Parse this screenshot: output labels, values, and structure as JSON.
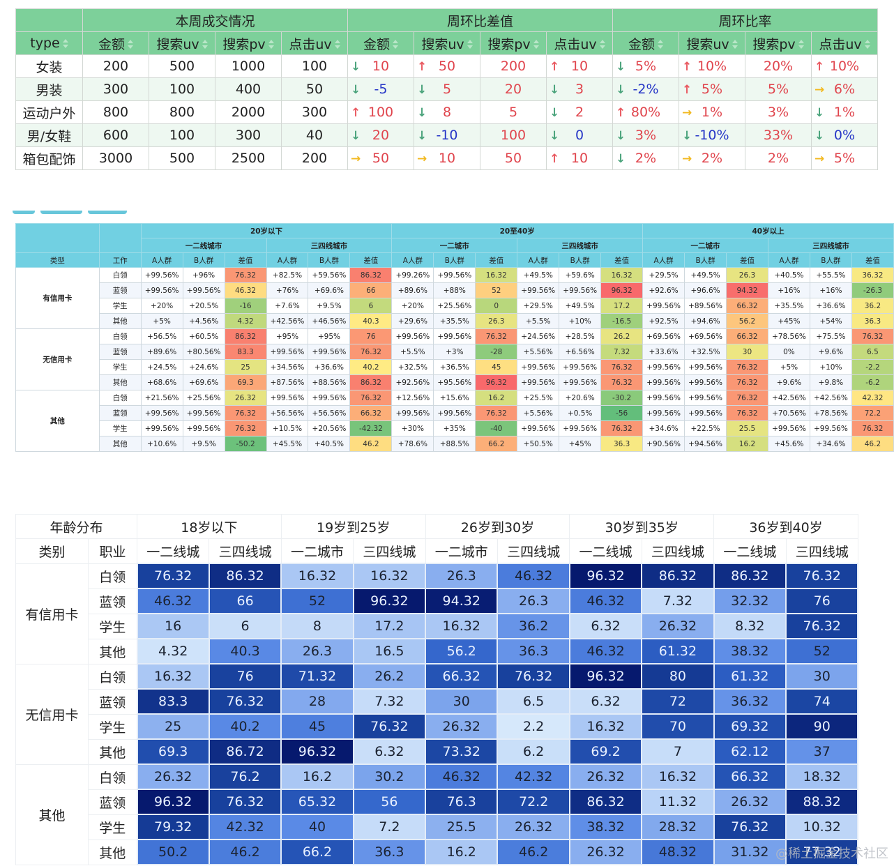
{
  "table1": {
    "group_headers": [
      "",
      "本周成交情况",
      "周环比差值",
      "周环比率"
    ],
    "columns": [
      "type",
      "金额",
      "搜索uv",
      "搜索pv",
      "点击uv",
      "金额",
      "搜索uv",
      "搜索pv",
      "点击uv",
      "金额",
      "搜索uv",
      "搜索pv",
      "点击uv"
    ],
    "sort_icon": "sort-icon",
    "arrow_colors": {
      "down": "#4aa37b",
      "up": "#e95a61",
      "right": "#f2b920"
    },
    "rows": [
      {
        "type": "女装",
        "current": [
          "200",
          "500",
          "1000",
          "100"
        ],
        "diff": [
          {
            "arrow": "down",
            "value": "10",
            "color": "red"
          },
          {
            "arrow": "up",
            "value": "50",
            "color": "red"
          },
          {
            "arrow": "",
            "value": "200",
            "color": "red"
          },
          {
            "arrow": "up",
            "value": "10",
            "color": "red"
          }
        ],
        "rate": [
          {
            "arrow": "down",
            "value": "5%",
            "color": "red"
          },
          {
            "arrow": "up",
            "value": "10%",
            "color": "red"
          },
          {
            "arrow": "",
            "value": "20%",
            "color": "red"
          },
          {
            "arrow": "up",
            "value": "10%",
            "color": "red"
          }
        ]
      },
      {
        "type": "男装",
        "current": [
          "300",
          "100",
          "400",
          "50"
        ],
        "diff": [
          {
            "arrow": "down",
            "value": "-5",
            "color": "blue"
          },
          {
            "arrow": "down",
            "value": "5",
            "color": "red"
          },
          {
            "arrow": "",
            "value": "20",
            "color": "red"
          },
          {
            "arrow": "down",
            "value": "3",
            "color": "red"
          }
        ],
        "rate": [
          {
            "arrow": "down",
            "value": "-2%",
            "color": "blue"
          },
          {
            "arrow": "up",
            "value": "5%",
            "color": "red"
          },
          {
            "arrow": "",
            "value": "5%",
            "color": "red"
          },
          {
            "arrow": "right",
            "value": "6%",
            "color": "red"
          }
        ]
      },
      {
        "type": "运动户外",
        "current": [
          "800",
          "800",
          "2000",
          "300"
        ],
        "diff": [
          {
            "arrow": "up",
            "value": "100",
            "color": "red"
          },
          {
            "arrow": "down",
            "value": "8",
            "color": "red"
          },
          {
            "arrow": "",
            "value": "5",
            "color": "red"
          },
          {
            "arrow": "down",
            "value": "2",
            "color": "red"
          }
        ],
        "rate": [
          {
            "arrow": "up",
            "value": "80%",
            "color": "red"
          },
          {
            "arrow": "right",
            "value": "1%",
            "color": "red"
          },
          {
            "arrow": "",
            "value": "3%",
            "color": "red"
          },
          {
            "arrow": "down",
            "value": "1%",
            "color": "red"
          }
        ]
      },
      {
        "type": "男/女鞋",
        "current": [
          "600",
          "100",
          "300",
          "40"
        ],
        "diff": [
          {
            "arrow": "down",
            "value": "20",
            "color": "red"
          },
          {
            "arrow": "down",
            "value": "-10",
            "color": "blue"
          },
          {
            "arrow": "",
            "value": "100",
            "color": "red"
          },
          {
            "arrow": "down",
            "value": "0",
            "color": "blue"
          }
        ],
        "rate": [
          {
            "arrow": "down",
            "value": "3%",
            "color": "red"
          },
          {
            "arrow": "down",
            "value": "-10%",
            "color": "blue"
          },
          {
            "arrow": "",
            "value": "33%",
            "color": "red"
          },
          {
            "arrow": "down",
            "value": "0%",
            "color": "blue"
          }
        ]
      },
      {
        "type": "箱包配饰",
        "current": [
          "3000",
          "500",
          "2500",
          "200"
        ],
        "diff": [
          {
            "arrow": "right",
            "value": "50",
            "color": "red"
          },
          {
            "arrow": "right",
            "value": "10",
            "color": "red"
          },
          {
            "arrow": "",
            "value": "50",
            "color": "red"
          },
          {
            "arrow": "up",
            "value": "10",
            "color": "red"
          }
        ],
        "rate": [
          {
            "arrow": "down",
            "value": "2%",
            "color": "red"
          },
          {
            "arrow": "right",
            "value": "2%",
            "color": "red"
          },
          {
            "arrow": "",
            "value": "2%",
            "color": "red"
          },
          {
            "arrow": "right",
            "value": "5%",
            "color": "red"
          }
        ]
      }
    ]
  },
  "tabs": {
    "count": 3,
    "color": "#67c6da"
  },
  "table2": {
    "header_color": "#71d0e2",
    "age_groups": [
      "20岁以下",
      "20至40岁",
      "40岁以上"
    ],
    "city_groups": [
      [
        "一二线城市",
        "三四线城市"
      ],
      [
        "一二城市",
        "三四线城市"
      ],
      [
        "一二城市",
        "三四线城市"
      ]
    ],
    "row_header_labels": [
      "类型",
      "工作"
    ],
    "sub_columns": [
      "A人群",
      "B人群",
      "差值"
    ],
    "color_scale": {
      "min": -56,
      "max": 96.32,
      "low": "#63be7b",
      "mid": "#ffeb84",
      "high": "#f8696b"
    },
    "groups": [
      {
        "label": "有信用卡",
        "rows": [
          {
            "job": "白领",
            "cells": [
              "+99.56%",
              "+96%",
              "76.32",
              "+82.5%",
              "+59.56%",
              "86.32",
              "+99.26%",
              "+99.56%",
              "16.32",
              "+49.5%",
              "+59.6%",
              "16.32",
              "+29.5%",
              "+49.5%",
              "26.3",
              "+40.5%",
              "+55.5%",
              "36.32"
            ]
          },
          {
            "job": "蓝领",
            "cells": [
              "+99.56%",
              "+99.56%",
              "46.32",
              "+76%",
              "+69.6%",
              "66",
              "+89.6%",
              "+88%",
              "52",
              "+99.56%",
              "+99.56%",
              "96.32",
              "+92.6%",
              "+96.6%",
              "94.32",
              "+16%",
              "+16%",
              "-26.3"
            ]
          },
          {
            "job": "学生",
            "cells": [
              "+20%",
              "+20.5%",
              "-16",
              "+7.6%",
              "+9.5%",
              "6",
              "+20%",
              "+25.56%",
              "0",
              "+29.5%",
              "+49.5%",
              "17.2",
              "+99.56%",
              "+89.56%",
              "66.32",
              "+35.5%",
              "+36.6%",
              "36.2"
            ]
          },
          {
            "job": "其他",
            "cells": [
              "+5%",
              "+4.56%",
              "4.32",
              "+42.56%",
              "+46.56%",
              "40.3",
              "+29.6%",
              "+35.5%",
              "26.3",
              "+5.5%",
              "+10%",
              "-16.5",
              "+92.5%",
              "+94.6%",
              "56.2",
              "+45%",
              "+54%",
              "36.3"
            ]
          }
        ]
      },
      {
        "label": "无信用卡",
        "rows": [
          {
            "job": "白领",
            "cells": [
              "+56.5%",
              "+60.5%",
              "86.32",
              "+95%",
              "+95%",
              "76",
              "+99.56%",
              "+99.56%",
              "76.32",
              "+24.56%",
              "+28.5%",
              "26.2",
              "+69.56%",
              "+69.56%",
              "66.32",
              "+78.56%",
              "+75.5%",
              "76.32"
            ]
          },
          {
            "job": "蓝领",
            "cells": [
              "+89.6%",
              "+80.56%",
              "83.3",
              "+99.56%",
              "+99.56%",
              "76.32",
              "+5.5%",
              "+3%",
              "-28",
              "+5.56%",
              "+6.56%",
              "7.32",
              "+33.6%",
              "+32.5%",
              "30",
              "0%",
              "+9.6%",
              "6.5"
            ]
          },
          {
            "job": "学生",
            "cells": [
              "+24.5%",
              "+24.6%",
              "25",
              "+34.56%",
              "+36.6%",
              "40.2",
              "+32.5%",
              "+36.5%",
              "45",
              "+99.56%",
              "+99.56%",
              "76.32",
              "+99.56%",
              "+99.56%",
              "76.32",
              "+5%",
              "+10%",
              "-2.2"
            ]
          },
          {
            "job": "其他",
            "cells": [
              "+68.6%",
              "+69.6%",
              "69.3",
              "+87.56%",
              "+88.56%",
              "86.32",
              "+92.56%",
              "+95.56%",
              "96.32",
              "+99.56%",
              "+99.56%",
              "76.32",
              "+99.56%",
              "+99.56%",
              "76.32",
              "+9.6%",
              "+9.8%",
              "-6.2"
            ]
          }
        ]
      },
      {
        "label": "其他",
        "rows": [
          {
            "job": "白领",
            "cells": [
              "+21.56%",
              "+25.56%",
              "26.32",
              "+99.56%",
              "+99.56%",
              "76.32",
              "+12.56%",
              "+15.6%",
              "16.2",
              "+25.5%",
              "+20.6%",
              "-30.2",
              "+99.56%",
              "+99.56%",
              "76.32",
              "+42.56%",
              "+42.56%",
              "42.32"
            ]
          },
          {
            "job": "蓝领",
            "cells": [
              "+99.56%",
              "+99.56%",
              "76.32",
              "+56.56%",
              "+56.56%",
              "66.32",
              "+99.56%",
              "+99.56%",
              "76.32",
              "+5.56%",
              "+0.5%",
              "-56",
              "+99.56%",
              "+99.56%",
              "76.32",
              "+70.56%",
              "+78.56%",
              "72.2"
            ]
          },
          {
            "job": "学生",
            "cells": [
              "+99.56%",
              "+99.56%",
              "76.32",
              "+10.5%",
              "+20.56%",
              "-42.32",
              "+30%",
              "+35%",
              "-40",
              "+99.56%",
              "+99.56%",
              "76.32",
              "+34.6%",
              "+22.5%",
              "25.5",
              "+99.56%",
              "+99.56%",
              "76.32"
            ]
          },
          {
            "job": "其他",
            "cells": [
              "+10.6%",
              "+9.5%",
              "-50.2",
              "+45.5%",
              "+40.5%",
              "46.2",
              "+78.6%",
              "+88.5%",
              "66.2",
              "+50.5%",
              "+45%",
              "36.3",
              "+90.56%",
              "+94.56%",
              "16.2",
              "+45.6%",
              "+34.6%",
              "46.2"
            ]
          }
        ]
      }
    ]
  },
  "table3": {
    "corner_label": "年龄分布",
    "row_header_labels": [
      "类别",
      "职业"
    ],
    "age_groups": [
      "18岁以下",
      "19岁到25岁",
      "26岁到30岁",
      "30岁到35岁",
      "36岁到40岁"
    ],
    "city_labels": [
      [
        "一二线城",
        "三四线城"
      ],
      [
        "一二城市",
        "三四线城"
      ],
      [
        "一二城市",
        "三四线城"
      ],
      [
        "一二线城",
        "三四线城"
      ],
      [
        "一二线城",
        "三四线城"
      ]
    ],
    "color_scale": {
      "min": 2.2,
      "max": 96.32,
      "low": "#cfe4fb",
      "high": "#061a6e"
    },
    "groups": [
      {
        "label": "有信用卡",
        "rows": [
          {
            "job": "白领",
            "values": [
              76.32,
              86.32,
              16.32,
              16.32,
              26.3,
              46.32,
              96.32,
              86.32,
              86.32,
              76.32
            ]
          },
          {
            "job": "蓝领",
            "values": [
              46.32,
              66,
              52,
              96.32,
              94.32,
              26.3,
              46.32,
              7.32,
              32.32,
              76
            ]
          },
          {
            "job": "学生",
            "values": [
              16,
              6,
              8,
              17.2,
              16.32,
              36.2,
              6.32,
              26.32,
              8.32,
              76.32
            ]
          },
          {
            "job": "其他",
            "values": [
              4.32,
              40.3,
              26.3,
              16.5,
              56.2,
              36.3,
              46.32,
              61.32,
              38.32,
              52
            ]
          }
        ]
      },
      {
        "label": "无信用卡",
        "rows": [
          {
            "job": "白领",
            "values": [
              16.32,
              76,
              71.32,
              26.2,
              66.32,
              76.32,
              96.32,
              80,
              61.32,
              30
            ]
          },
          {
            "job": "蓝领",
            "values": [
              83.3,
              76.32,
              28,
              7.32,
              30,
              6.5,
              6.32,
              72,
              36.32,
              74
            ]
          },
          {
            "job": "学生",
            "values": [
              25,
              40.2,
              45,
              76.32,
              26.32,
              2.2,
              16.32,
              70,
              69.32,
              90
            ]
          },
          {
            "job": "其他",
            "values": [
              69.3,
              86.72,
              96.32,
              6.32,
              73.32,
              6.2,
              69.2,
              7,
              62.12,
              37
            ]
          }
        ]
      },
      {
        "label": "其他",
        "rows": [
          {
            "job": "白领",
            "values": [
              26.32,
              76.2,
              16.2,
              30.2,
              46.32,
              42.32,
              26.32,
              16.32,
              66.32,
              18.32
            ]
          },
          {
            "job": "蓝领",
            "values": [
              96.32,
              76.32,
              65.32,
              56,
              76.3,
              72.2,
              86.32,
              11.32,
              26.32,
              88.32
            ]
          },
          {
            "job": "学生",
            "values": [
              79.32,
              42.32,
              40,
              7.2,
              25.5,
              26.32,
              38.32,
              28.32,
              76.32,
              10.32
            ]
          },
          {
            "job": "其他",
            "values": [
              50.2,
              46.2,
              66.2,
              36.3,
              16.2,
              46.2,
              26.32,
              48.32,
              31.32,
              77.32
            ]
          }
        ]
      }
    ]
  },
  "watermark": "@稀土掘金技术社区"
}
